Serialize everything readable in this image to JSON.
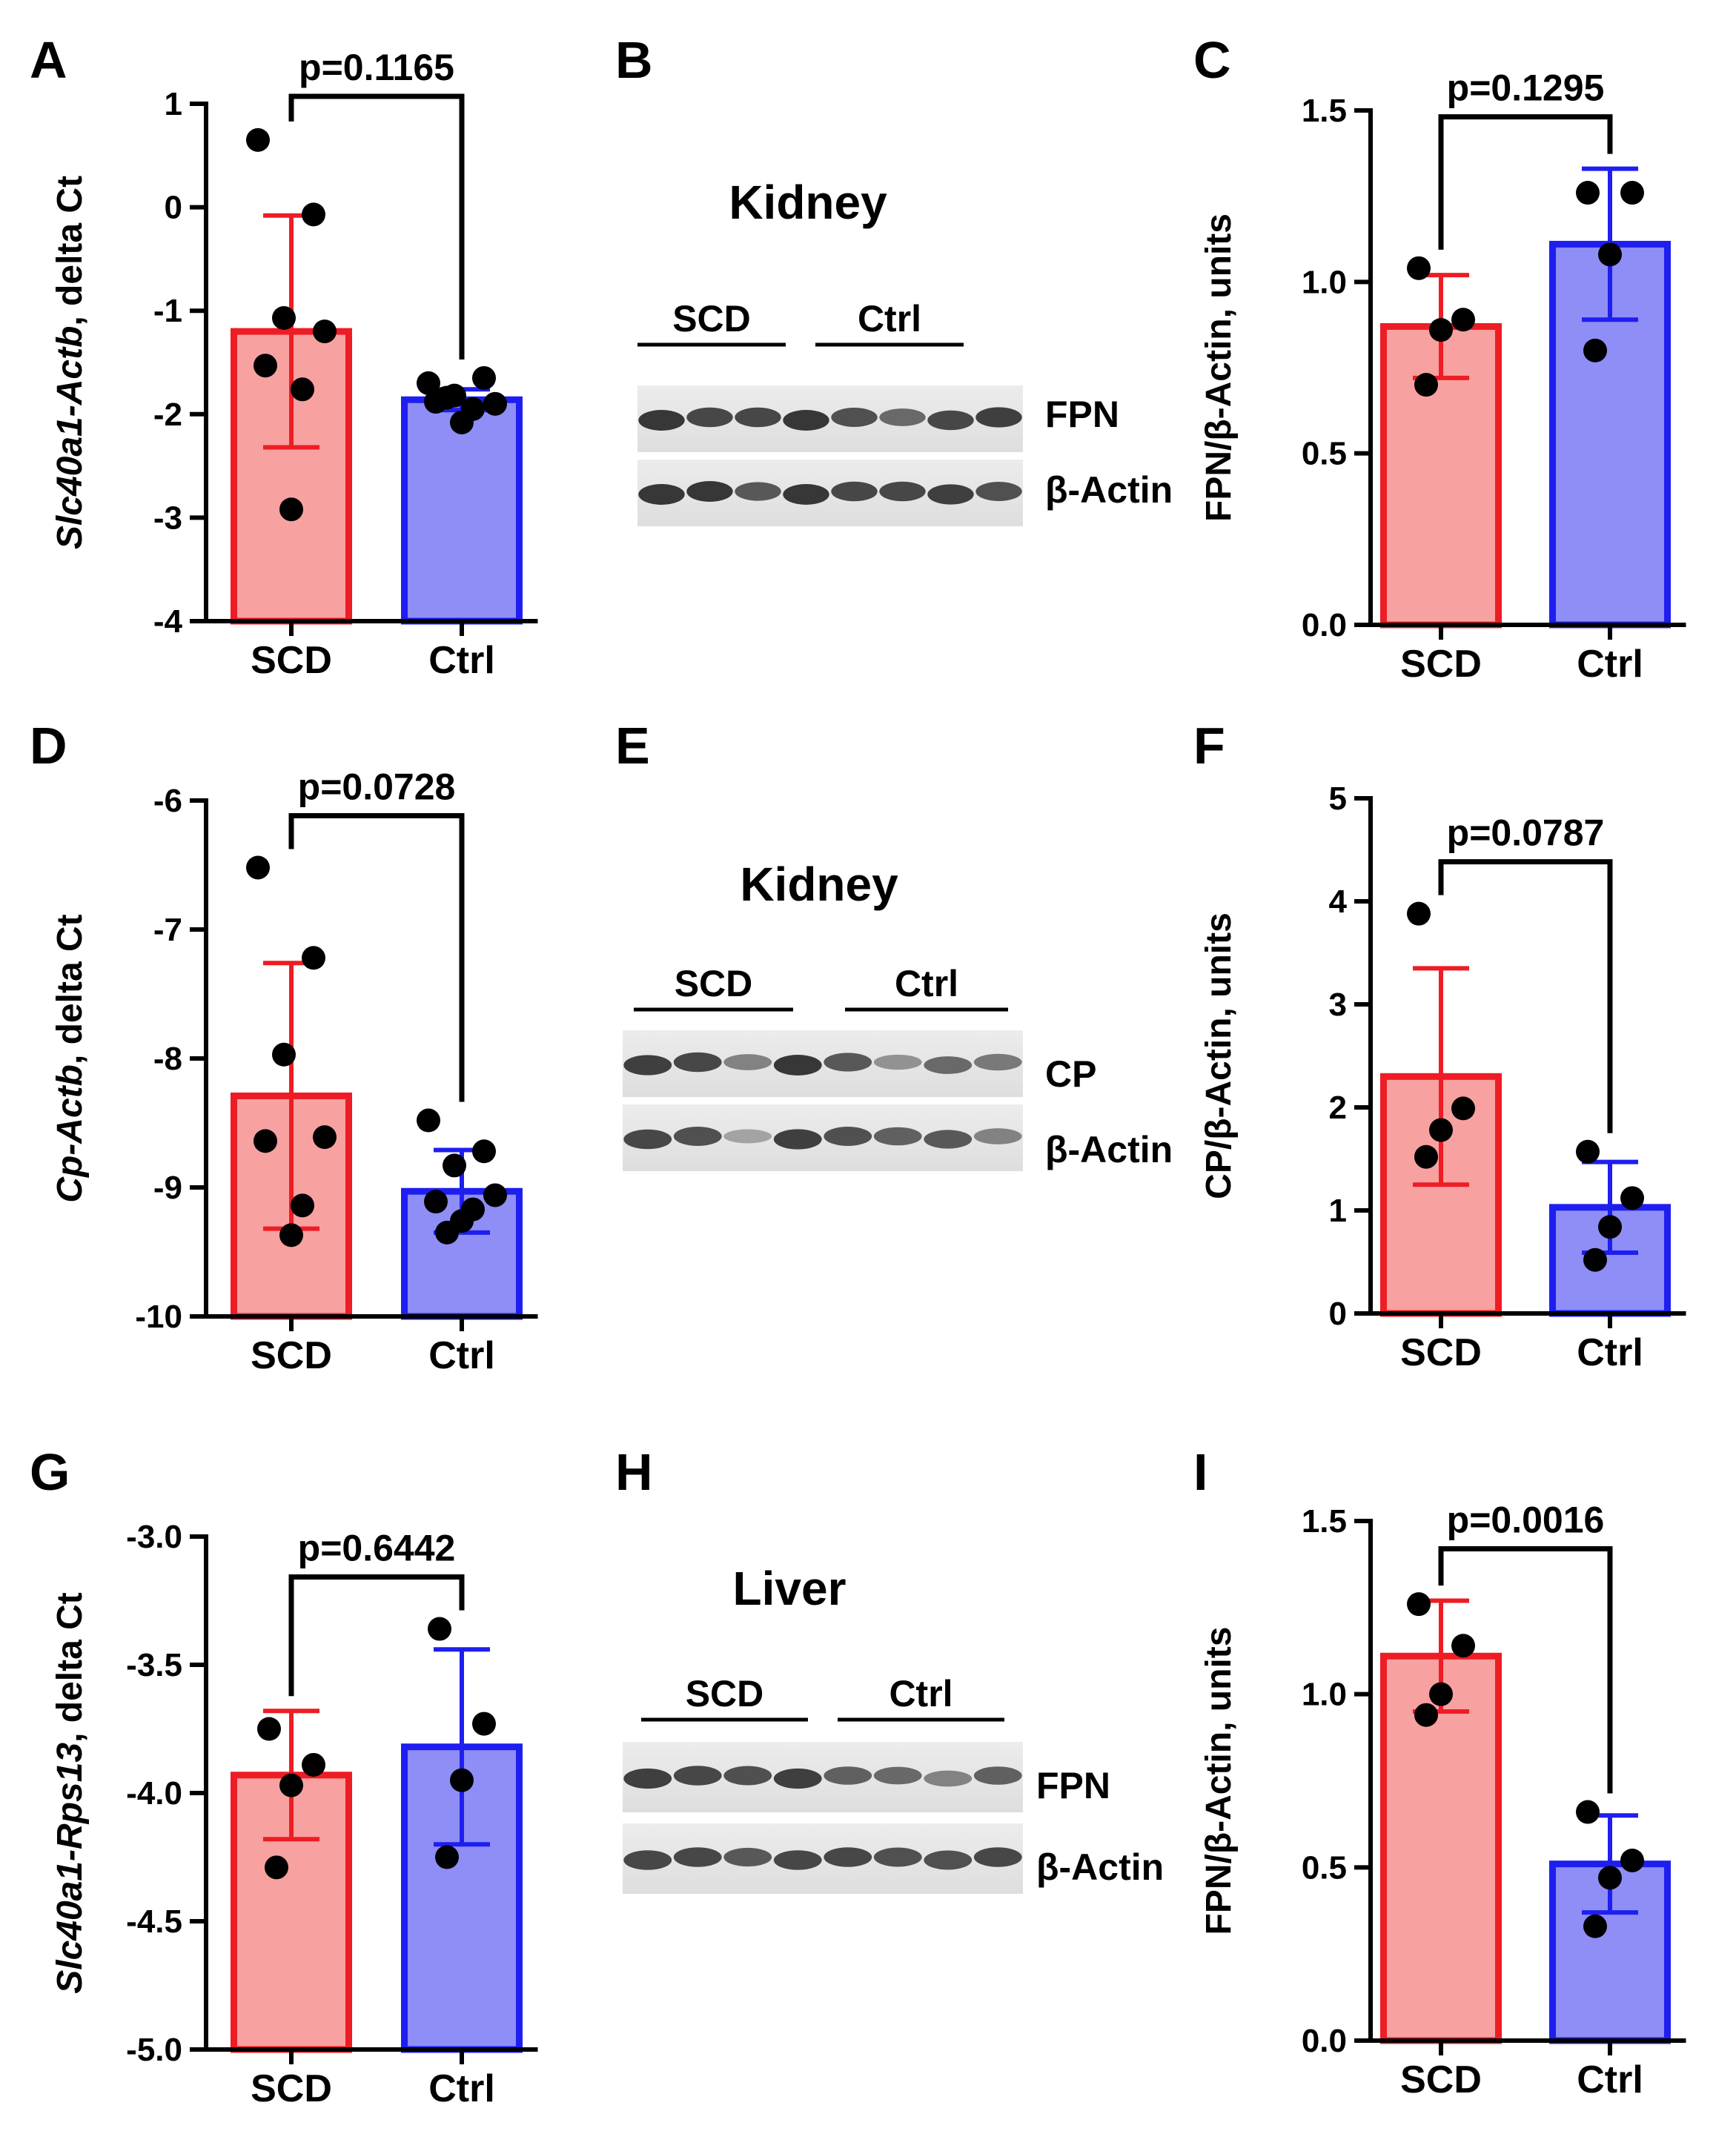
{
  "colors": {
    "scd_fill": "#f8a1a1",
    "scd_stroke": "#ee1c24",
    "ctrl_fill": "#8e8ef6",
    "ctrl_stroke": "#1e1ef0",
    "axis": "#000000"
  },
  "chart_data": [
    {
      "panel": "A",
      "type": "bar",
      "categories": [
        "SCD",
        "Ctrl"
      ],
      "ylabel_italic": "Slc40a1-Actb",
      "ylabel_rest": ", delta Ct",
      "ylim": [
        -4,
        1
      ],
      "yticks": [
        "1",
        "0",
        "-1",
        "-2",
        "-3",
        "-4"
      ],
      "ytick_values": [
        1,
        0,
        -1,
        -2,
        -3,
        -4
      ],
      "values": [
        -1.2,
        -1.86
      ],
      "errors": [
        1.12,
        0.1
      ],
      "points": [
        [
          0.65,
          -0.07,
          -1.07,
          -1.2,
          -1.53,
          -1.76,
          -2.92
        ],
        [
          -1.7,
          -1.65,
          -1.82,
          -1.9,
          -1.88,
          -1.95,
          -2.08,
          -1.84
        ]
      ],
      "p_value": "p=0.1165"
    },
    {
      "panel": "C",
      "type": "bar",
      "categories": [
        "SCD",
        "Ctrl"
      ],
      "ylabel_italic": "",
      "ylabel_rest": "FPN/β-Actin, units",
      "ylim": [
        0,
        1.5
      ],
      "yticks": [
        "1.5",
        "1.0",
        "0.5",
        "0.0"
      ],
      "ytick_values": [
        1.5,
        1.0,
        0.5,
        0.0
      ],
      "values": [
        0.87,
        1.11
      ],
      "errors": [
        0.15,
        0.22
      ],
      "points": [
        [
          1.04,
          0.89,
          0.86,
          0.7
        ],
        [
          1.26,
          1.26,
          1.08,
          0.8
        ]
      ],
      "p_value": "p=0.1295"
    },
    {
      "panel": "D",
      "type": "bar",
      "categories": [
        "SCD",
        "Ctrl"
      ],
      "ylabel_italic": "Cp-Actb",
      "ylabel_rest": ", delta Ct",
      "ylim": [
        -10,
        -6
      ],
      "yticks": [
        "-6",
        "-7",
        "-8",
        "-9",
        "-10"
      ],
      "ytick_values": [
        -6,
        -7,
        -8,
        -9,
        -10
      ],
      "values": [
        -8.29,
        -9.03
      ],
      "errors": [
        1.03,
        0.32
      ],
      "points": [
        [
          -6.52,
          -7.22,
          -7.97,
          -8.61,
          -8.64,
          -9.14,
          -9.37
        ],
        [
          -8.48,
          -8.72,
          -8.83,
          -9.06,
          -9.11,
          -9.17,
          -9.26,
          -9.35
        ]
      ],
      "p_value": "p=0.0728"
    },
    {
      "panel": "F",
      "type": "bar",
      "categories": [
        "SCD",
        "Ctrl"
      ],
      "ylabel_italic": "",
      "ylabel_rest": "CP/β-Actin, units",
      "ylim": [
        0,
        5
      ],
      "yticks": [
        "5",
        "4",
        "3",
        "2",
        "1",
        "0"
      ],
      "ytick_values": [
        5,
        4,
        3,
        2,
        1,
        0
      ],
      "values": [
        2.3,
        1.03
      ],
      "errors": [
        1.05,
        0.44
      ],
      "points": [
        [
          3.88,
          1.99,
          1.78,
          1.52
        ],
        [
          1.57,
          1.12,
          0.84,
          0.52
        ]
      ],
      "p_value": "p=0.0787"
    },
    {
      "panel": "G",
      "type": "bar",
      "categories": [
        "SCD",
        "Ctrl"
      ],
      "ylabel_italic": "Slc40a1-Rps13",
      "ylabel_rest": ", delta Ct",
      "ylim": [
        -5,
        -3
      ],
      "yticks": [
        "-3.0",
        "-3.5",
        "-4.0",
        "-4.5",
        "-5.0"
      ],
      "ytick_values": [
        -3.0,
        -3.5,
        -4.0,
        -4.5,
        -5.0
      ],
      "values": [
        -3.93,
        -3.82
      ],
      "errors": [
        0.25,
        0.38
      ],
      "points": [
        [
          -3.75,
          -3.89,
          -3.97,
          -4.29
        ],
        [
          -3.36,
          -3.73,
          -3.95,
          -4.25
        ]
      ],
      "p_value": "p=0.6442"
    },
    {
      "panel": "I",
      "type": "bar",
      "categories": [
        "SCD",
        "Ctrl"
      ],
      "ylabel_italic": "",
      "ylabel_rest": "FPN/β-Actin, units",
      "ylim": [
        0,
        1.5
      ],
      "yticks": [
        "1.5",
        "1.0",
        "0.5",
        "0.0"
      ],
      "ytick_values": [
        1.5,
        1.0,
        0.5,
        0.0
      ],
      "values": [
        1.11,
        0.51
      ],
      "errors": [
        0.16,
        0.14
      ],
      "points": [
        [
          1.26,
          1.14,
          1.0,
          0.94
        ],
        [
          0.66,
          0.52,
          0.47,
          0.33
        ]
      ],
      "p_value": "p=0.0016"
    }
  ],
  "blots": [
    {
      "panel": "B",
      "title": "Kidney",
      "group1": "SCD",
      "group2": "Ctrl",
      "band1_label": "FPN",
      "band2_label": "β-Actin",
      "band1_intensity": [
        1.0,
        0.9,
        0.9,
        1.0,
        0.85,
        0.7,
        0.9,
        0.95
      ],
      "band2_intensity": [
        1.0,
        1.0,
        0.8,
        1.0,
        0.9,
        0.9,
        0.95,
        0.85
      ]
    },
    {
      "panel": "E",
      "title": "Kidney",
      "group1": "SCD",
      "group2": "Ctrl",
      "band1_label": "CP",
      "band2_label": "β-Actin",
      "band1_intensity": [
        0.95,
        0.9,
        0.55,
        1.0,
        0.8,
        0.45,
        0.7,
        0.6
      ],
      "band2_intensity": [
        0.9,
        0.85,
        0.35,
        0.95,
        0.85,
        0.75,
        0.8,
        0.55
      ]
    },
    {
      "panel": "H",
      "title": "Liver",
      "group1": "SCD",
      "group2": "Ctrl",
      "band1_label": "FPN",
      "band2_label": "β-Actin",
      "band1_intensity": [
        0.95,
        0.9,
        0.85,
        0.95,
        0.75,
        0.7,
        0.55,
        0.75
      ],
      "band2_intensity": [
        0.9,
        0.9,
        0.8,
        0.9,
        0.9,
        0.85,
        0.85,
        0.9
      ]
    }
  ]
}
